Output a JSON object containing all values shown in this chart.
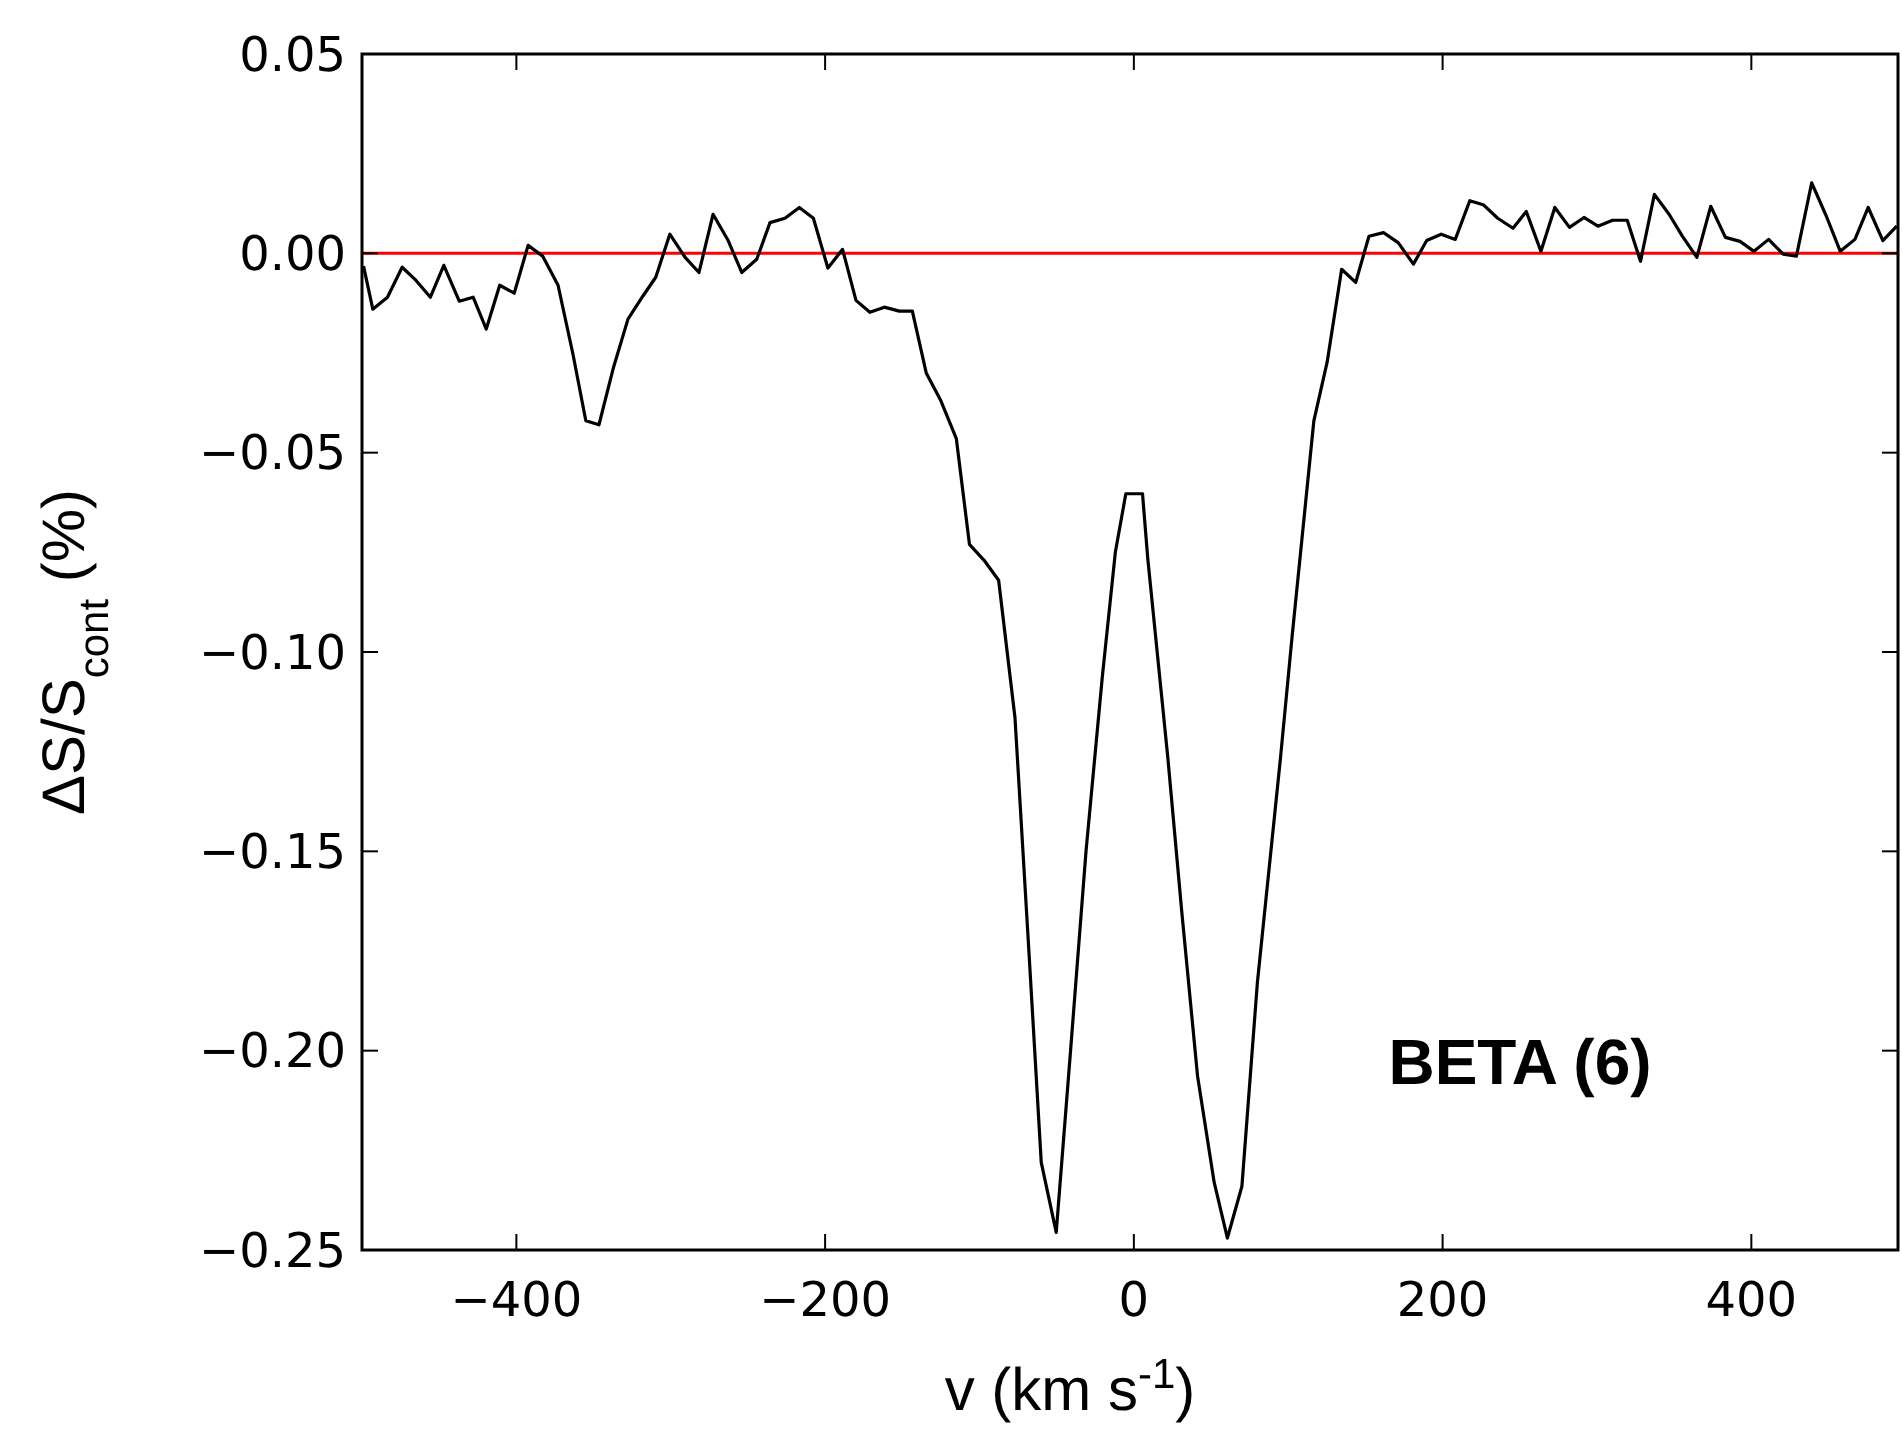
{
  "chart_data": {
    "type": "line",
    "xlabel": "v (km s$^{-1}$)",
    "ylabel": "ΔS/S$_{cont}$ (%)",
    "x": [
      -499,
      -493,
      -483.5,
      -474,
      -465,
      -455.7,
      -447,
      -437,
      -428,
      -419.5,
      -410.8,
      -401.4,
      -392.4,
      -383,
      -373,
      -363.5,
      -355,
      -346.5,
      -337,
      -327.7,
      -318,
      -309.7,
      -300.6,
      -290.7,
      -281.7,
      -272.6,
      -262.8,
      -254,
      -244.3,
      -235.7,
      -226,
      -216.7,
      -207.6,
      -198.2,
      -188.7,
      -180,
      -171,
      -161.6,
      -152,
      -143.5,
      -134.5,
      -125,
      -115,
      -106.5,
      -97,
      -87.6,
      -77,
      -68,
      -60,
      -50.3,
      -41,
      -31,
      -20.5,
      -12,
      -5.2,
      5.6,
      9,
      22,
      31,
      41.3,
      52,
      60.6,
      70,
      80,
      95,
      102.4,
      116.6,
      125.2,
      134.6,
      143.7,
      152.3,
      161.7,
      171.2,
      181.1,
      189.7,
      199.1,
      208.2,
      217.6,
      226.3,
      235.7,
      245.6,
      254.2,
      263.7,
      272.7,
      282.2,
      291.6,
      300.6,
      310.1,
      319.6,
      328.2,
      337.2,
      346.7,
      355.3,
      364.7,
      373.7,
      383.2,
      392.7,
      401.7,
      411.2,
      420.6,
      429.2,
      439.1,
      448.6,
      457.6,
      467.1,
      475.7,
      485.2,
      494.2
    ],
    "series": [
      {
        "color": "#000000",
        "values": [
          -0.0032,
          -0.014,
          -0.011,
          -0.0035,
          -0.0068,
          -0.011,
          -0.003,
          -0.012,
          -0.011,
          -0.019,
          -0.008,
          -0.01,
          0.002,
          -0.0007,
          -0.008,
          -0.025,
          -0.042,
          -0.043,
          -0.0285,
          -0.0165,
          -0.0107,
          -0.006,
          0.0048,
          -0.001,
          -0.0048,
          0.0098,
          0.0032,
          -0.0048,
          -0.0015,
          0.0077,
          0.0088,
          0.0115,
          0.0088,
          -0.0037,
          0.001,
          -0.0118,
          -0.0148,
          -0.0135,
          -0.0145,
          -0.0145,
          -0.03,
          -0.037,
          -0.0465,
          -0.073,
          -0.077,
          -0.082,
          -0.1165,
          -0.175,
          -0.228,
          -0.2456,
          -0.2,
          -0.15,
          -0.1065,
          -0.075,
          -0.0603,
          -0.0603,
          -0.0765,
          -0.1265,
          -0.165,
          -0.2065,
          -0.233,
          -0.247,
          -0.234,
          -0.183,
          -0.1265,
          -0.0965,
          -0.042,
          -0.0273,
          -0.004,
          -0.0073,
          0.0043,
          0.0052,
          0.0027,
          -0.0027,
          0.0032,
          0.0048,
          0.0035,
          0.0132,
          0.0122,
          0.0088,
          0.0063,
          0.0105,
          0.0005,
          0.0115,
          0.0065,
          0.009,
          0.0068,
          0.0083,
          0.0083,
          -0.002,
          0.0148,
          0.0098,
          0.0043,
          -0.001,
          0.0118,
          0.004,
          0.003,
          0.0005,
          0.0035,
          -0.0002,
          -0.0007,
          0.0177,
          0.0093,
          0.0005,
          0.0035,
          0.0115,
          0.0032,
          0.0068
        ]
      }
    ],
    "xlim": [
      -500,
      495
    ],
    "ylim": [
      -0.25,
      0.05
    ],
    "xticks": [
      {
        "value": -400,
        "label": "−400"
      },
      {
        "value": -200,
        "label": "−200"
      },
      0,
      200,
      400
    ],
    "yticks": [
      {
        "value": -0.25,
        "label": "−0.25"
      },
      {
        "value": -0.2,
        "label": "−0.20"
      },
      {
        "value": -0.15,
        "label": "−0.15"
      },
      {
        "value": -0.1,
        "label": "−0.10"
      },
      {
        "value": -0.05,
        "label": "−0.05"
      },
      {
        "value": 0,
        "label": "0.00"
      },
      {
        "value": 0.05,
        "label": "0.05"
      }
    ],
    "ref_lines": [
      {
        "axis": "y",
        "value": 0,
        "color": "#ff0000"
      }
    ],
    "annotations": [
      "BETA (6)"
    ],
    "grid": false,
    "marker": "none",
    "line_style": "solid"
  }
}
